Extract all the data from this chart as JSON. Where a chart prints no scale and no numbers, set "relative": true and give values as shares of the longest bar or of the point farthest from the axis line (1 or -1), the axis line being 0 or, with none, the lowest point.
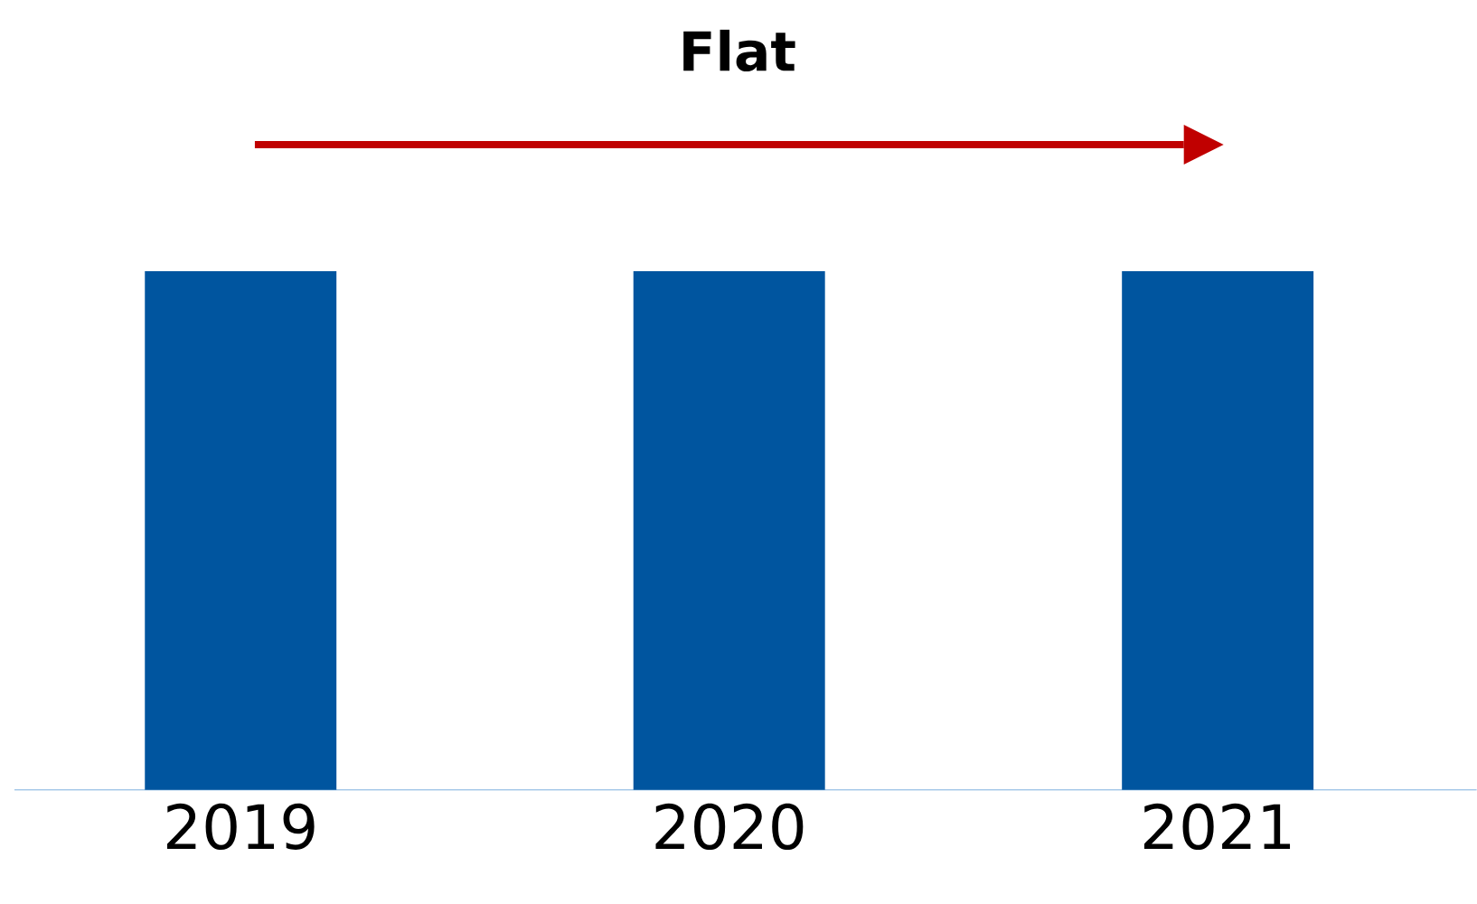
{
  "chart_data": {
    "type": "bar",
    "title": "Flat",
    "categories": [
      "2019",
      "2020",
      "2021"
    ],
    "values": [
      1,
      1,
      1
    ],
    "color": "#00559f",
    "relative": true
  }
}
